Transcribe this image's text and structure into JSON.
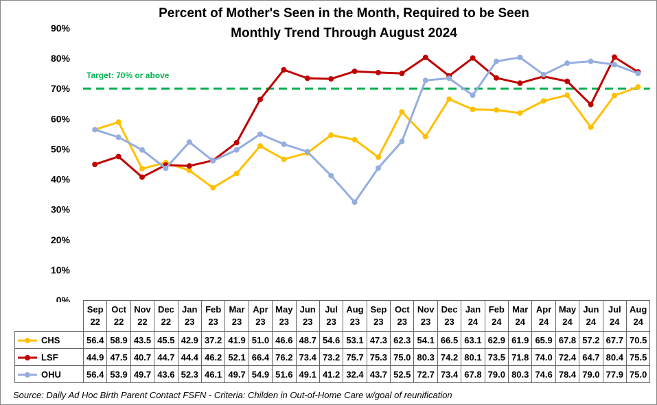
{
  "chart_data": {
    "type": "line",
    "title": [
      "Percent of Mother's Seen in the Month, Required to be Seen",
      "Monthly Trend Through August 2024"
    ],
    "categories": [
      "Sep 22",
      "Oct 22",
      "Nov 22",
      "Dec 22",
      "Jan 23",
      "Feb 23",
      "Mar 23",
      "Apr 23",
      "May 23",
      "Jun 23",
      "Jul 23",
      "Aug 23",
      "Sep 23",
      "Oct 23",
      "Nov 23",
      "Dec 23",
      "Jan 24",
      "Feb 24",
      "Mar 24",
      "Apr 24",
      "May 24",
      "Jun 24",
      "Jul 24",
      "Aug 24"
    ],
    "series": [
      {
        "name": "CHS",
        "color": "#ffc000",
        "values": [
          56.4,
          58.9,
          43.5,
          45.5,
          42.9,
          37.2,
          41.9,
          51.0,
          46.6,
          48.7,
          54.6,
          53.1,
          47.3,
          62.3,
          54.1,
          66.5,
          63.1,
          62.9,
          61.9,
          65.9,
          67.8,
          57.2,
          67.7,
          70.5
        ],
        "value_labels": [
          "56.4",
          "58.9",
          "43.5",
          "45.5",
          "42.9",
          "37.2",
          "41.9",
          "51.0",
          "46.6",
          "48.7",
          "54.6",
          "53.1",
          "47.3",
          "62.3",
          "54.1",
          "66.5",
          "63.1",
          "62.9",
          "61.9",
          "65.9",
          "67.8",
          "57.2",
          "67.7",
          "70.5"
        ]
      },
      {
        "name": "LSF",
        "color": "#c00000",
        "values": [
          44.9,
          47.5,
          40.7,
          44.7,
          44.4,
          46.2,
          52.1,
          66.4,
          76.2,
          73.4,
          73.2,
          75.7,
          75.3,
          75.0,
          80.3,
          74.2,
          80.1,
          73.5,
          71.8,
          74.0,
          72.4,
          64.7,
          80.4,
          75.5
        ],
        "value_labels": [
          "44.9",
          "47.5",
          "40.7",
          "44.7",
          "44.4",
          "46.2",
          "52.1",
          "66.4",
          "76.2",
          "73.4",
          "73.2",
          "75.7",
          "75.3",
          "75.0",
          "80.3",
          "74.2",
          "80.1",
          "73.5",
          "71.8",
          "74.0",
          "72.4",
          "64.7",
          "80.4",
          "75.5"
        ]
      },
      {
        "name": "OHU",
        "color": "#95ade0",
        "values": [
          56.4,
          53.9,
          49.7,
          43.6,
          52.3,
          46.1,
          49.7,
          54.9,
          51.6,
          49.1,
          41.2,
          32.4,
          43.7,
          52.5,
          72.7,
          73.4,
          67.8,
          79.0,
          80.3,
          74.6,
          78.4,
          79.0,
          77.9,
          75.0
        ],
        "value_labels": [
          "56.4",
          "53.9",
          "49.7",
          "43.6",
          "52.3",
          "46.1",
          "49.7",
          "54.9",
          "51.6",
          "49.1",
          "41.2",
          "32.4",
          "43.7",
          "52.5",
          "72.7",
          "73.4",
          "67.8",
          "79.0",
          "80.3",
          "74.6",
          "78.4",
          "79.0",
          "77.9",
          "75.0"
        ]
      }
    ],
    "ylim": [
      0,
      90
    ],
    "yticks": [
      {
        "value": 0,
        "label": "0%"
      },
      {
        "value": 10,
        "label": "10%"
      },
      {
        "value": 20,
        "label": "20%"
      },
      {
        "value": 30,
        "label": "30%"
      },
      {
        "value": 40,
        "label": "40%"
      },
      {
        "value": 50,
        "label": "50%"
      },
      {
        "value": 60,
        "label": "60%"
      },
      {
        "value": 70,
        "label": "70%"
      },
      {
        "value": 80,
        "label": "80%"
      },
      {
        "value": 90,
        "label": "90%"
      }
    ],
    "target": {
      "value": 70,
      "label": "Target: 70% or above",
      "color": "#00b050"
    },
    "source": "Source: Daily Ad Hoc Birth Parent Contact FSFN  -  Criteria: Childen in Out-of-Home Care w/goal of reunification"
  }
}
